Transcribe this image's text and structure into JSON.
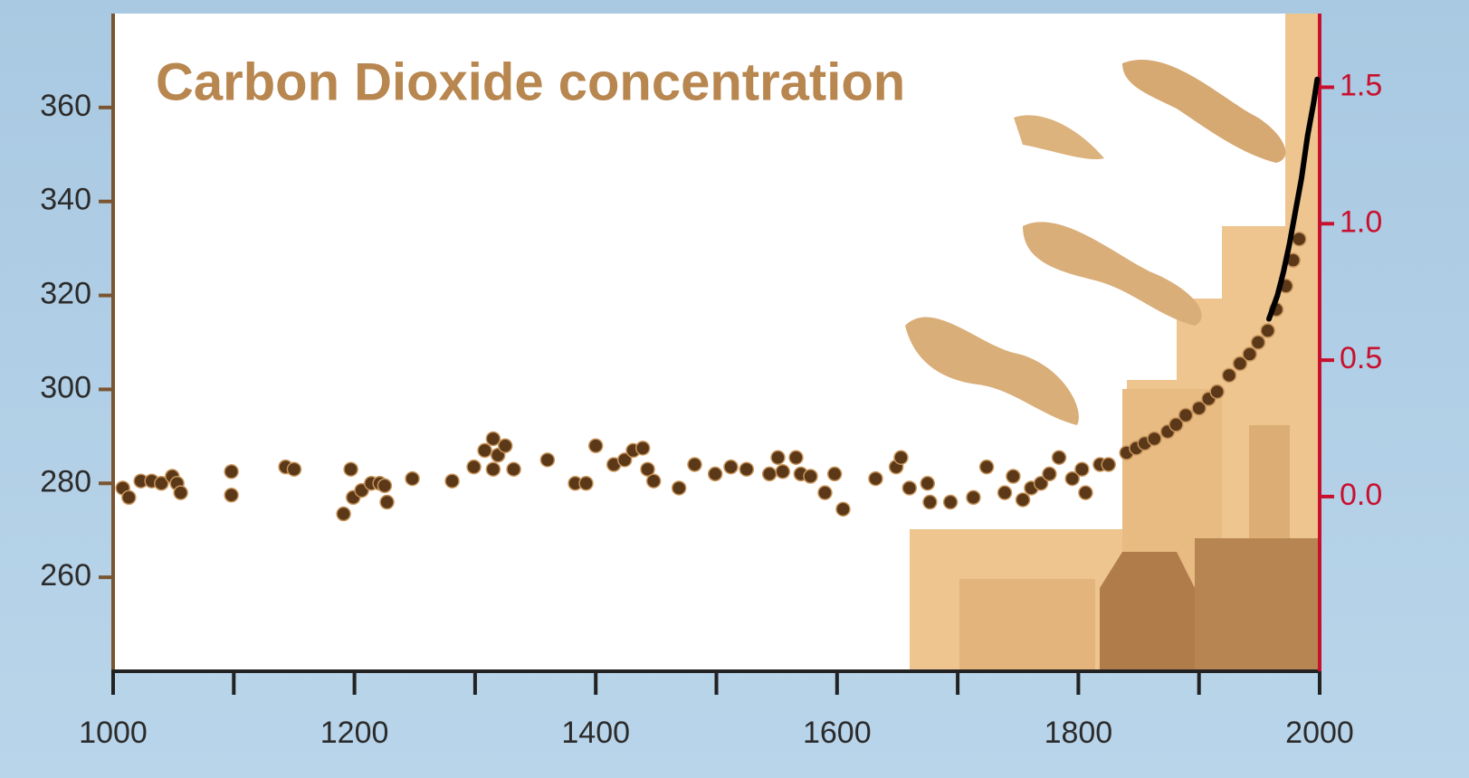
{
  "chart_data": {
    "type": "scatter",
    "title": "Carbon Dioxide concentration",
    "xlim": [
      1000,
      2000
    ],
    "xticks": [
      1000,
      1200,
      1400,
      1600,
      1800,
      2000
    ],
    "xminorticks": [
      1100,
      1300,
      1500,
      1700,
      1900
    ],
    "ylim": [
      240,
      380
    ],
    "yticks": [
      260,
      280,
      300,
      320,
      340,
      360
    ],
    "y2lim": [
      -0.64,
      1.77
    ],
    "y2ticks": [
      {
        "value": 0,
        "label": "0.0"
      },
      0.5,
      {
        "value": 1,
        "label": "1.0"
      },
      1.5
    ],
    "y2color": "#c8102e",
    "series": [
      {
        "type": "scatter",
        "color": "#5a3818",
        "x": [
          1008,
          1013,
          1023,
          1032,
          1040,
          1049,
          1053,
          1056,
          1098,
          1098,
          1143,
          1150,
          1191,
          1197,
          1199,
          1206,
          1214,
          1221,
          1227,
          1225,
          1248,
          1281,
          1299,
          1308,
          1315,
          1319,
          1315,
          1325,
          1332,
          1360,
          1383,
          1392,
          1400,
          1415,
          1424,
          1431,
          1439,
          1443,
          1448,
          1469,
          1482,
          1499,
          1512,
          1525,
          1544,
          1551,
          1555,
          1566,
          1570,
          1578,
          1590,
          1598,
          1605,
          1632,
          1649,
          1653,
          1660,
          1675,
          1677,
          1694,
          1713,
          1724,
          1739,
          1746,
          1754,
          1761,
          1769,
          1776,
          1784,
          1795,
          1803,
          1806,
          1818,
          1825,
          1840,
          1848,
          1855,
          1863,
          1874,
          1881,
          1889,
          1900,
          1908,
          1915,
          1925,
          1934,
          1942,
          1949,
          1957,
          1964,
          1972,
          1978,
          1983
        ],
        "values": [
          279,
          277,
          280.5,
          280.5,
          280,
          281.5,
          280,
          278,
          282.5,
          277.5,
          283.5,
          283,
          273.5,
          283,
          277,
          278.5,
          280,
          280,
          276,
          279.5,
          281,
          280.5,
          283.5,
          287,
          289.5,
          286,
          283,
          288,
          283,
          285,
          280,
          280,
          288,
          284,
          285,
          287,
          287.5,
          283,
          280.5,
          279,
          284,
          282,
          283.5,
          283,
          282,
          285.5,
          282.5,
          285.5,
          282,
          281.5,
          278,
          282,
          274.5,
          281,
          283.5,
          285.5,
          279,
          280,
          276,
          276,
          277,
          283.5,
          278,
          281.5,
          276.5,
          279,
          280,
          282,
          285.5,
          281,
          283,
          278,
          284,
          284,
          286.5,
          287.5,
          288.5,
          289.5,
          291,
          292.5,
          294.5,
          296,
          298,
          299.5,
          303,
          305.5,
          307.5,
          310,
          312.5,
          317,
          322,
          327.5,
          332
        ]
      },
      {
        "type": "line",
        "color": "#000000",
        "x": [
          1958,
          1965,
          1970,
          1975,
          1980,
          1985,
          1990,
          1995,
          1998
        ],
        "values": [
          315,
          320,
          325,
          331,
          338,
          345,
          354,
          361,
          366
        ]
      }
    ]
  }
}
